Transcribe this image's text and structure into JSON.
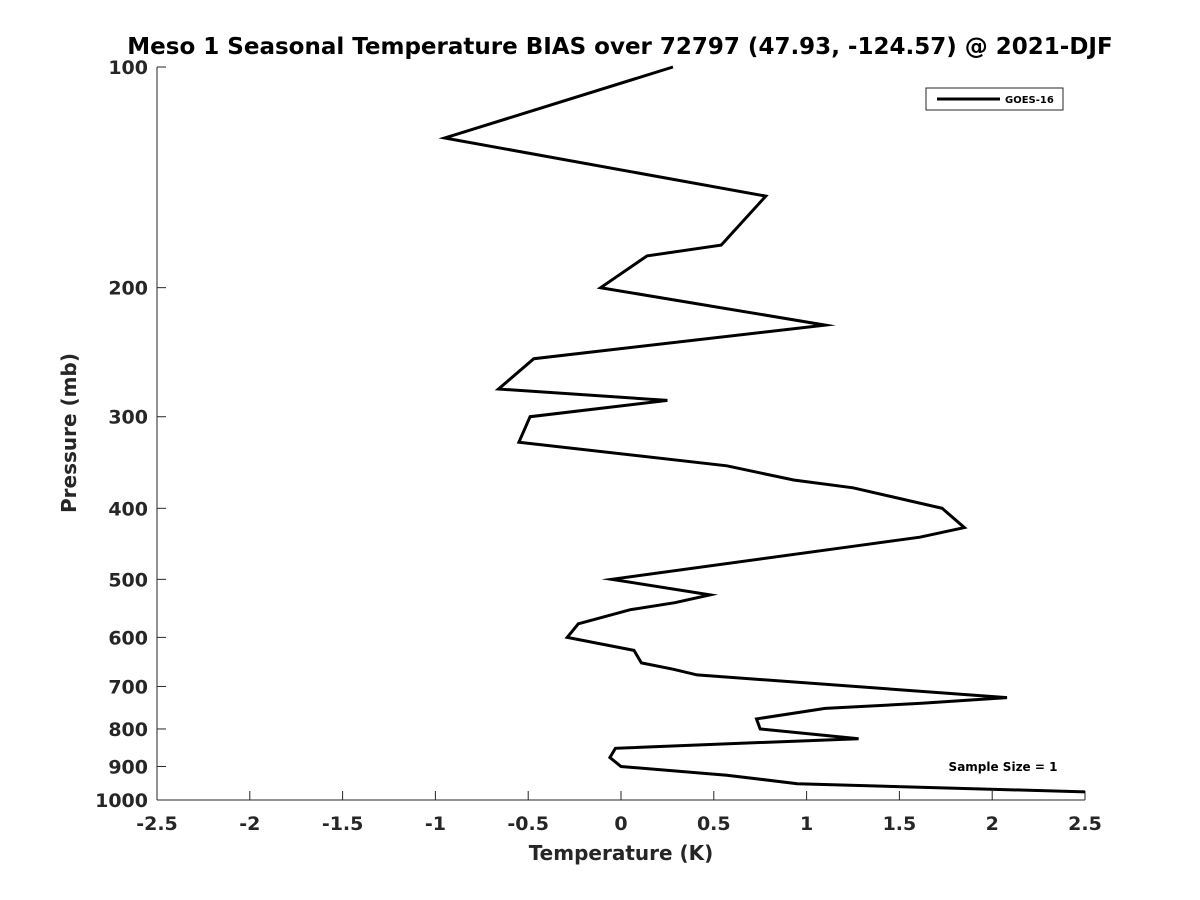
{
  "chart_data": {
    "type": "line",
    "title": "Meso 1 Seasonal Temperature BIAS over 72797 (47.93, -124.57) @ 2021-DJF",
    "xlabel": "Temperature (K)",
    "ylabel": "Pressure (mb)",
    "xlim": [
      -2.5,
      2.5
    ],
    "ylim": [
      100,
      1000
    ],
    "yscale": "log",
    "y_reversed": true,
    "grid": false,
    "x_ticks": [
      -2.5,
      -2,
      -1.5,
      -1,
      -0.5,
      0,
      0.5,
      1,
      1.5,
      2,
      2.5
    ],
    "x_tick_labels": [
      "-2.5",
      "-2",
      "-1.5",
      "-1",
      "-0.5",
      "0",
      "0.5",
      "1",
      "1.5",
      "2",
      "2.5"
    ],
    "y_ticks": [
      100,
      200,
      300,
      400,
      500,
      600,
      700,
      800,
      900,
      1000
    ],
    "y_tick_labels": [
      "100",
      "200",
      "300",
      "400",
      "500",
      "600",
      "700",
      "800",
      "900",
      "1000"
    ],
    "legend": {
      "position": "top-right",
      "entries": [
        "GOES-16"
      ]
    },
    "annotation": "Sample Size = 1",
    "series": [
      {
        "name": "GOES-16",
        "color": "#000000",
        "points": [
          {
            "x": 0.28,
            "p": 100
          },
          {
            "x": -0.95,
            "p": 125
          },
          {
            "x": 0.78,
            "p": 150
          },
          {
            "x": 0.54,
            "p": 175
          },
          {
            "x": 0.14,
            "p": 181
          },
          {
            "x": -0.11,
            "p": 200
          },
          {
            "x": 1.1,
            "p": 225
          },
          {
            "x": -0.47,
            "p": 250
          },
          {
            "x": -0.66,
            "p": 275
          },
          {
            "x": 0.25,
            "p": 285
          },
          {
            "x": -0.49,
            "p": 300
          },
          {
            "x": -0.55,
            "p": 325
          },
          {
            "x": 0.57,
            "p": 350
          },
          {
            "x": 0.93,
            "p": 366
          },
          {
            "x": 1.25,
            "p": 375
          },
          {
            "x": 1.73,
            "p": 400
          },
          {
            "x": 1.85,
            "p": 425
          },
          {
            "x": 1.61,
            "p": 438
          },
          {
            "x": 1.27,
            "p": 450
          },
          {
            "x": -0.05,
            "p": 500
          },
          {
            "x": 0.48,
            "p": 525
          },
          {
            "x": 0.29,
            "p": 538
          },
          {
            "x": 0.05,
            "p": 550
          },
          {
            "x": -0.23,
            "p": 575
          },
          {
            "x": -0.29,
            "p": 600
          },
          {
            "x": 0.07,
            "p": 625
          },
          {
            "x": 0.11,
            "p": 650
          },
          {
            "x": 0.28,
            "p": 663
          },
          {
            "x": 0.41,
            "p": 675
          },
          {
            "x": 2.08,
            "p": 725
          },
          {
            "x": 1.62,
            "p": 738
          },
          {
            "x": 1.1,
            "p": 750
          },
          {
            "x": 0.73,
            "p": 775
          },
          {
            "x": 0.75,
            "p": 800
          },
          {
            "x": 1.28,
            "p": 825
          },
          {
            "x": 0.58,
            "p": 838
          },
          {
            "x": -0.03,
            "p": 850
          },
          {
            "x": -0.06,
            "p": 875
          },
          {
            "x": 0.0,
            "p": 900
          },
          {
            "x": 0.57,
            "p": 925
          },
          {
            "x": 0.95,
            "p": 950
          },
          {
            "x": 2.5,
            "p": 975
          }
        ]
      }
    ]
  }
}
